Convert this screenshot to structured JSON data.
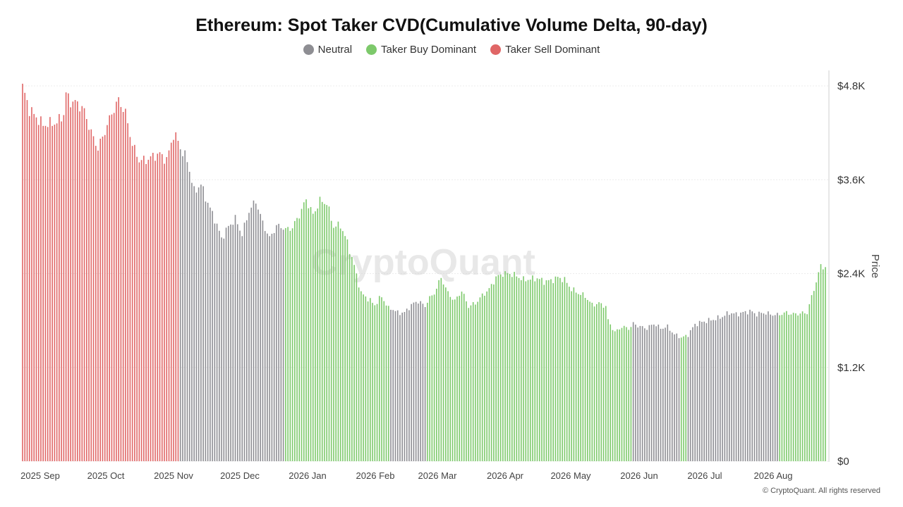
{
  "title": "Ethereum: Spot Taker CVD(Cumulative Volume Delta, 90-day)",
  "legend": [
    {
      "label": "Neutral",
      "color": "#8e8e93"
    },
    {
      "label": "Taker Buy Dominant",
      "color": "#7dc96b"
    },
    {
      "label": "Taker Sell Dominant",
      "color": "#e06666"
    }
  ],
  "watermark": "CryptoQuant",
  "copyright": "© CryptoQuant. All rights reserved",
  "chart_data": {
    "type": "bar",
    "title": "Ethereum: Spot Taker CVD(Cumulative Volume Delta, 90-day)",
    "ylabel": "Price",
    "ylim": [
      0,
      4800
    ],
    "y_ticks": [
      "$0",
      "$1.2K",
      "$2.4K",
      "$3.6K",
      "$4.8K"
    ],
    "x_ticks": [
      "2025 Sep",
      "2025 Oct",
      "2025 Nov",
      "2025 Dec",
      "2026 Jan",
      "2026 Feb",
      "2026 Mar",
      "2026 Apr",
      "2026 May",
      "2026 Jun",
      "2026 Jul",
      "2026 Aug"
    ],
    "grid": true,
    "legend_position": "top-center",
    "series": [
      {
        "name": "Taker Sell Dominant",
        "color": "#e06666",
        "points": [
          [
            0,
            4790
          ],
          [
            3,
            4500
          ],
          [
            6,
            4400
          ],
          [
            9,
            4300
          ],
          [
            12,
            4320
          ],
          [
            15,
            4330
          ],
          [
            18,
            4440
          ],
          [
            19,
            4700
          ],
          [
            21,
            4600
          ],
          [
            24,
            4580
          ],
          [
            27,
            4480
          ],
          [
            30,
            4200
          ],
          [
            33,
            4000
          ],
          [
            36,
            4220
          ],
          [
            39,
            4450
          ],
          [
            42,
            4620
          ],
          [
            45,
            4450
          ],
          [
            48,
            4050
          ],
          [
            51,
            3850
          ],
          [
            54,
            3850
          ],
          [
            57,
            3900
          ],
          [
            60,
            3930
          ],
          [
            63,
            3850
          ],
          [
            66,
            4180
          ],
          [
            68,
            4100
          ]
        ]
      },
      {
        "name": "Neutral",
        "color": "#8e8e93",
        "points": [
          [
            69,
            4000
          ],
          [
            72,
            3850
          ],
          [
            75,
            3450
          ],
          [
            78,
            3540
          ],
          [
            81,
            3300
          ],
          [
            84,
            3100
          ],
          [
            87,
            2850
          ],
          [
            90,
            3000
          ],
          [
            93,
            3100
          ],
          [
            96,
            2900
          ],
          [
            99,
            3200
          ],
          [
            102,
            3330
          ],
          [
            105,
            3050
          ],
          [
            108,
            2850
          ],
          [
            111,
            3010
          ],
          [
            114,
            2990
          ]
        ]
      },
      {
        "name": "Taker Buy Dominant",
        "color": "#7dc96b",
        "points": [
          [
            115,
            2960
          ],
          [
            118,
            2990
          ],
          [
            121,
            3150
          ],
          [
            124,
            3350
          ],
          [
            127,
            3150
          ],
          [
            130,
            3330
          ],
          [
            133,
            3300
          ],
          [
            136,
            3000
          ],
          [
            139,
            3020
          ],
          [
            142,
            2800
          ],
          [
            145,
            2500
          ],
          [
            148,
            2150
          ],
          [
            151,
            2080
          ],
          [
            154,
            2000
          ],
          [
            157,
            2110
          ],
          [
            160,
            1950
          ]
        ]
      },
      {
        "name": "Neutral",
        "color": "#8e8e93",
        "points": [
          [
            161,
            1960
          ],
          [
            164,
            1900
          ],
          [
            167,
            1900
          ],
          [
            170,
            2000
          ],
          [
            173,
            2050
          ],
          [
            176,
            1980
          ]
        ]
      },
      {
        "name": "Taker Buy Dominant",
        "color": "#7dc96b",
        "points": [
          [
            177,
            2050
          ],
          [
            180,
            2150
          ],
          [
            183,
            2350
          ],
          [
            186,
            2150
          ],
          [
            189,
            2050
          ],
          [
            192,
            2180
          ],
          [
            195,
            1980
          ],
          [
            198,
            2020
          ],
          [
            201,
            2120
          ],
          [
            204,
            2200
          ],
          [
            207,
            2350
          ],
          [
            210,
            2400
          ],
          [
            213,
            2400
          ],
          [
            216,
            2370
          ],
          [
            219,
            2320
          ],
          [
            222,
            2330
          ],
          [
            225,
            2340
          ],
          [
            228,
            2300
          ],
          [
            231,
            2310
          ],
          [
            234,
            2350
          ],
          [
            237,
            2320
          ],
          [
            240,
            2200
          ],
          [
            243,
            2150
          ],
          [
            246,
            2110
          ],
          [
            249,
            2000
          ],
          [
            252,
            2020
          ],
          [
            255,
            1980
          ]
        ]
      },
      {
        "name": "Taker Buy Dominant",
        "color": "#7dc96b",
        "points": [
          [
            256,
            1800
          ],
          [
            259,
            1650
          ],
          [
            262,
            1720
          ],
          [
            265,
            1700
          ],
          [
            266,
            1720
          ]
        ]
      },
      {
        "name": "Neutral",
        "color": "#8e8e93",
        "points": [
          [
            267,
            1760
          ],
          [
            270,
            1720
          ],
          [
            273,
            1700
          ],
          [
            276,
            1760
          ],
          [
            279,
            1700
          ],
          [
            282,
            1720
          ],
          [
            285,
            1620
          ],
          [
            287,
            1600
          ]
        ]
      },
      {
        "name": "Taker Buy Dominant",
        "color": "#7dc96b",
        "points": [
          [
            288,
            1580
          ],
          [
            290,
            1600
          ]
        ]
      },
      {
        "name": "Neutral",
        "color": "#8e8e93",
        "points": [
          [
            291,
            1620
          ],
          [
            294,
            1750
          ],
          [
            297,
            1780
          ],
          [
            300,
            1800
          ],
          [
            303,
            1820
          ],
          [
            306,
            1850
          ],
          [
            309,
            1900
          ],
          [
            312,
            1880
          ],
          [
            315,
            1900
          ],
          [
            318,
            1920
          ],
          [
            321,
            1880
          ],
          [
            324,
            1900
          ],
          [
            327,
            1880
          ],
          [
            330,
            1870
          ]
        ]
      },
      {
        "name": "Taker Buy Dominant",
        "color": "#7dc96b",
        "points": [
          [
            331,
            1880
          ],
          [
            334,
            1900
          ],
          [
            337,
            1880
          ],
          [
            340,
            1890
          ],
          [
            343,
            1900
          ],
          [
            346,
            2200
          ],
          [
            348,
            2400
          ],
          [
            349,
            2500
          ],
          [
            351,
            2480
          ]
        ]
      }
    ]
  }
}
